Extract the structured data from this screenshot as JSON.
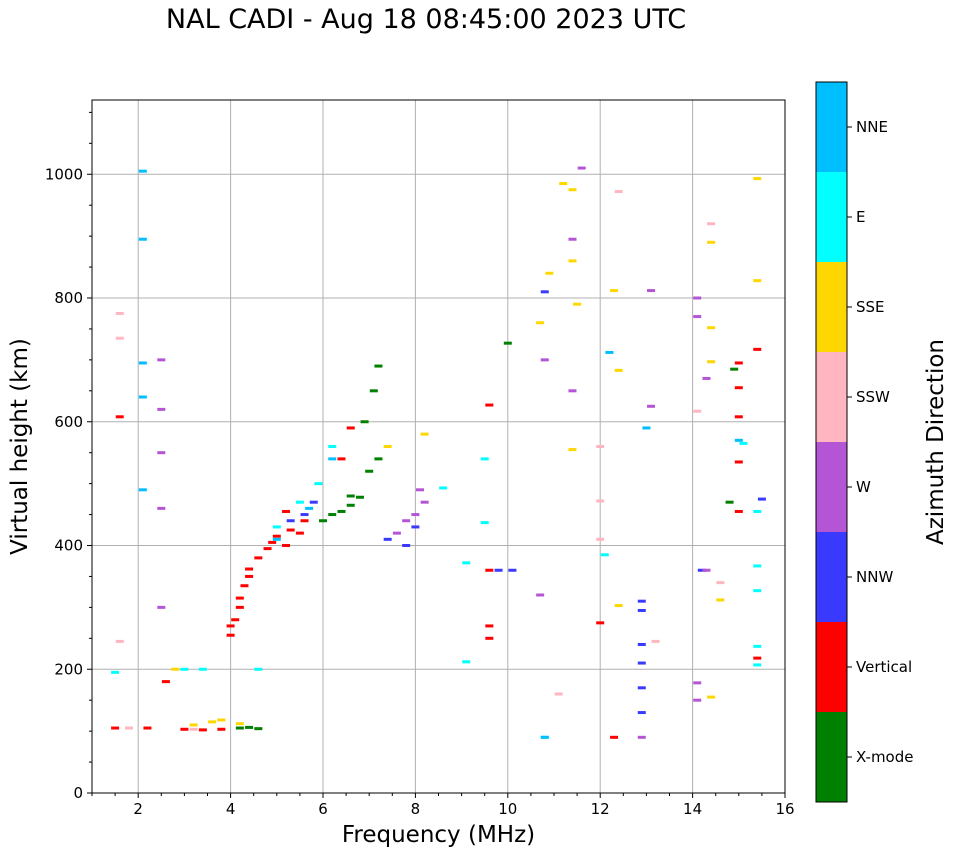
{
  "chart_data": {
    "type": "scatter",
    "title": "NAL CADI - Aug 18 08:45:00 2023 UTC",
    "xlabel": "Frequency (MHz)",
    "ylabel": "Virtual height (km)",
    "xlim": [
      1,
      16
    ],
    "ylim": [
      0,
      1120
    ],
    "xticks": [
      2,
      4,
      6,
      8,
      10,
      12,
      14,
      16
    ],
    "yticks": [
      0,
      200,
      400,
      600,
      800,
      1000
    ],
    "grid": true,
    "colorbar": {
      "label": "Azimuth Direction",
      "categories": [
        {
          "name": "X-mode",
          "color": "#008000"
        },
        {
          "name": "Vertical",
          "color": "#ff0000"
        },
        {
          "name": "NNW",
          "color": "#3a3aff"
        },
        {
          "name": "W",
          "color": "#b455d6"
        },
        {
          "name": "SSW",
          "color": "#ffb6c1"
        },
        {
          "name": "SSE",
          "color": "#ffd700"
        },
        {
          "name": "E",
          "color": "#00ffff"
        },
        {
          "name": "NNE",
          "color": "#00bfff"
        }
      ]
    },
    "series": [
      {
        "name": "X-mode",
        "points": [
          [
            4.2,
            105
          ],
          [
            4.4,
            106
          ],
          [
            4.6,
            104
          ],
          [
            6.0,
            440
          ],
          [
            6.2,
            450
          ],
          [
            6.4,
            455
          ],
          [
            6.6,
            465
          ],
          [
            6.8,
            478
          ],
          [
            6.6,
            480
          ],
          [
            7.0,
            520
          ],
          [
            7.2,
            540
          ],
          [
            6.9,
            600
          ],
          [
            7.1,
            650
          ],
          [
            7.2,
            690
          ],
          [
            10.0,
            727
          ],
          [
            14.9,
            685
          ],
          [
            14.8,
            470
          ]
        ]
      },
      {
        "name": "Vertical",
        "points": [
          [
            1.6,
            608
          ],
          [
            1.5,
            105
          ],
          [
            2.2,
            105
          ],
          [
            2.6,
            180
          ],
          [
            3.0,
            103
          ],
          [
            3.4,
            102
          ],
          [
            3.8,
            103
          ],
          [
            4.0,
            255
          ],
          [
            4.0,
            270
          ],
          [
            4.1,
            280
          ],
          [
            4.2,
            300
          ],
          [
            4.2,
            315
          ],
          [
            4.3,
            335
          ],
          [
            4.4,
            350
          ],
          [
            4.4,
            362
          ],
          [
            4.6,
            380
          ],
          [
            4.8,
            395
          ],
          [
            4.9,
            405
          ],
          [
            5.0,
            415
          ],
          [
            5.2,
            400
          ],
          [
            5.3,
            425
          ],
          [
            5.5,
            420
          ],
          [
            5.6,
            440
          ],
          [
            5.2,
            455
          ],
          [
            6.4,
            540
          ],
          [
            6.6,
            590
          ],
          [
            9.6,
            627
          ],
          [
            9.6,
            360
          ],
          [
            9.6,
            270
          ],
          [
            9.6,
            250
          ],
          [
            12.0,
            275
          ],
          [
            12.3,
            90
          ],
          [
            15.0,
            455
          ],
          [
            15.0,
            535
          ],
          [
            15.0,
            608
          ],
          [
            15.0,
            655
          ],
          [
            15.0,
            695
          ],
          [
            15.4,
            717
          ],
          [
            15.4,
            218
          ]
        ]
      },
      {
        "name": "NNW",
        "points": [
          [
            5.3,
            440
          ],
          [
            5.6,
            450
          ],
          [
            5.8,
            470
          ],
          [
            7.4,
            410
          ],
          [
            7.8,
            400
          ],
          [
            8.0,
            430
          ],
          [
            9.8,
            360
          ],
          [
            10.1,
            360
          ],
          [
            10.8,
            810
          ],
          [
            12.9,
            310
          ],
          [
            12.9,
            295
          ],
          [
            12.9,
            240
          ],
          [
            12.9,
            210
          ],
          [
            12.9,
            170
          ],
          [
            12.9,
            130
          ],
          [
            15.5,
            475
          ],
          [
            14.2,
            360
          ]
        ]
      },
      {
        "name": "W",
        "points": [
          [
            2.5,
            700
          ],
          [
            2.5,
            620
          ],
          [
            2.5,
            550
          ],
          [
            2.5,
            460
          ],
          [
            2.5,
            300
          ],
          [
            7.6,
            420
          ],
          [
            7.8,
            440
          ],
          [
            8.0,
            450
          ],
          [
            8.2,
            470
          ],
          [
            8.1,
            490
          ],
          [
            10.7,
            320
          ],
          [
            10.8,
            700
          ],
          [
            11.4,
            650
          ],
          [
            11.6,
            1010
          ],
          [
            11.4,
            895
          ],
          [
            13.1,
            625
          ],
          [
            13.1,
            812
          ],
          [
            14.1,
            800
          ],
          [
            14.1,
            770
          ],
          [
            14.3,
            670
          ],
          [
            14.3,
            360
          ],
          [
            14.1,
            178
          ],
          [
            14.1,
            150
          ],
          [
            12.9,
            90
          ]
        ]
      },
      {
        "name": "SSW",
        "points": [
          [
            1.6,
            775
          ],
          [
            1.6,
            735
          ],
          [
            1.6,
            245
          ],
          [
            1.8,
            105
          ],
          [
            3.2,
            103
          ],
          [
            12.4,
            972
          ],
          [
            14.4,
            920
          ],
          [
            14.1,
            617
          ],
          [
            13.2,
            245
          ],
          [
            12.0,
            560
          ],
          [
            12.0,
            472
          ],
          [
            12.0,
            410
          ],
          [
            14.6,
            340
          ],
          [
            11.1,
            160
          ]
        ]
      },
      {
        "name": "SSE",
        "points": [
          [
            2.8,
            200
          ],
          [
            3.2,
            110
          ],
          [
            3.6,
            115
          ],
          [
            3.8,
            118
          ],
          [
            4.2,
            112
          ],
          [
            7.4,
            560
          ],
          [
            8.2,
            580
          ],
          [
            10.7,
            760
          ],
          [
            10.9,
            840
          ],
          [
            11.2,
            985
          ],
          [
            11.4,
            975
          ],
          [
            11.4,
            860
          ],
          [
            11.5,
            790
          ],
          [
            12.3,
            812
          ],
          [
            12.4,
            683
          ],
          [
            12.4,
            303
          ],
          [
            14.4,
            890
          ],
          [
            14.4,
            752
          ],
          [
            14.4,
            697
          ],
          [
            14.4,
            155
          ],
          [
            14.6,
            312
          ],
          [
            15.4,
            993
          ],
          [
            15.4,
            828
          ],
          [
            11.4,
            555
          ]
        ]
      },
      {
        "name": "E",
        "points": [
          [
            1.5,
            195
          ],
          [
            3.0,
            200
          ],
          [
            3.4,
            200
          ],
          [
            4.6,
            200
          ],
          [
            5.0,
            430
          ],
          [
            5.5,
            470
          ],
          [
            5.9,
            500
          ],
          [
            6.2,
            560
          ],
          [
            8.6,
            493
          ],
          [
            9.1,
            372
          ],
          [
            9.1,
            212
          ],
          [
            12.1,
            385
          ],
          [
            15.1,
            565
          ],
          [
            15.4,
            455
          ],
          [
            15.4,
            367
          ],
          [
            15.4,
            327
          ],
          [
            15.4,
            237
          ],
          [
            15.4,
            207
          ],
          [
            9.5,
            540
          ],
          [
            9.5,
            437
          ],
          [
            10.8,
            90
          ]
        ]
      },
      {
        "name": "NNE",
        "points": [
          [
            2.1,
            1005
          ],
          [
            2.1,
            895
          ],
          [
            2.1,
            695
          ],
          [
            2.1,
            640
          ],
          [
            2.1,
            490
          ],
          [
            5.0,
            410
          ],
          [
            5.7,
            460
          ],
          [
            6.2,
            540
          ],
          [
            12.2,
            712
          ],
          [
            15.0,
            570
          ],
          [
            13.0,
            590
          ],
          [
            10.8,
            90
          ]
        ]
      }
    ]
  }
}
